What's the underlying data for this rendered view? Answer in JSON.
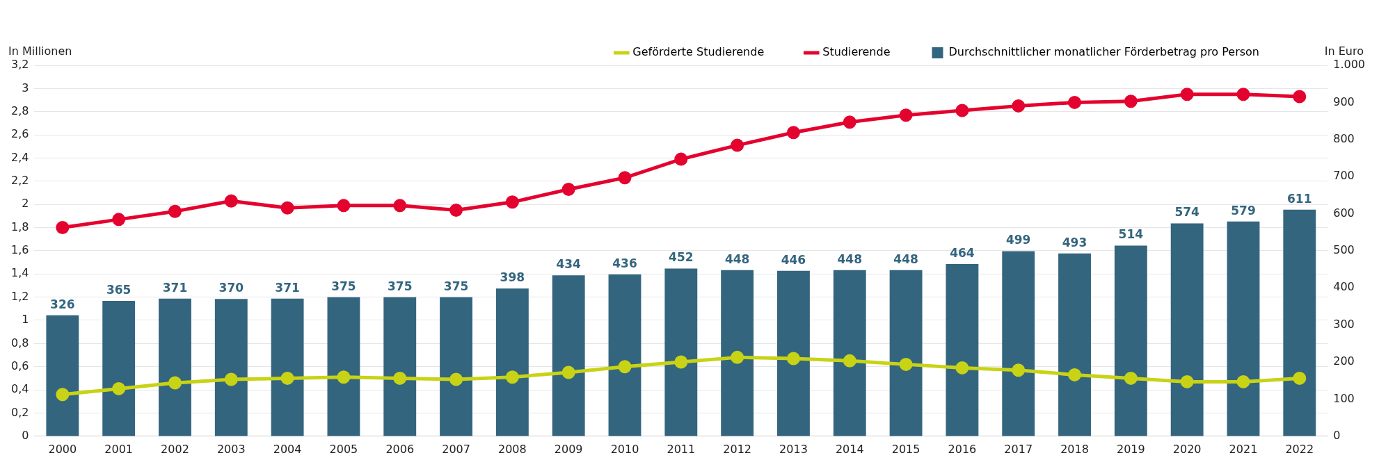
{
  "chart_data": {
    "type": "bar",
    "ylabel": "In Millionen",
    "y2label": "In Euro",
    "categories": [
      "2000",
      "2001",
      "2002",
      "2003",
      "2004",
      "2005",
      "2006",
      "2007",
      "2008",
      "2009",
      "2010",
      "2011",
      "2012",
      "2013",
      "2014",
      "2015",
      "2016",
      "2017",
      "2018",
      "2019",
      "2020",
      "2021",
      "2022"
    ],
    "series": [
      {
        "name": "Geförderte Studierende",
        "type": "line",
        "axis": "y",
        "color": "#c8d316",
        "values": [
          0.36,
          0.41,
          0.46,
          0.49,
          0.5,
          0.51,
          0.5,
          0.49,
          0.51,
          0.55,
          0.6,
          0.64,
          0.68,
          0.67,
          0.65,
          0.62,
          0.59,
          0.57,
          0.53,
          0.5,
          0.47,
          0.47,
          0.5
        ]
      },
      {
        "name": "Studierende",
        "type": "line",
        "axis": "y",
        "color": "#e4032e",
        "values": [
          1.8,
          1.87,
          1.94,
          2.03,
          1.97,
          1.99,
          1.99,
          1.95,
          2.02,
          2.13,
          2.23,
          2.39,
          2.51,
          2.62,
          2.71,
          2.77,
          2.81,
          2.85,
          2.88,
          2.89,
          2.95,
          2.95,
          2.93
        ]
      },
      {
        "name": "Durchschnittlicher monatlicher Förderbetrag pro Person",
        "axis": "y2",
        "color": "#34657f",
        "values": [
          326,
          365,
          371,
          370,
          371,
          375,
          375,
          375,
          398,
          434,
          436,
          452,
          448,
          446,
          448,
          448,
          464,
          499,
          493,
          514,
          574,
          579,
          611
        ],
        "value_labels": [
          "326",
          "365",
          "371",
          "370",
          "371",
          "375",
          "375",
          "375",
          "398",
          "434",
          "436",
          "452",
          "448",
          "446",
          "448",
          "448",
          "464",
          "499",
          "493",
          "514",
          "574",
          "579",
          "611"
        ]
      }
    ],
    "ylim": [
      0,
      3.2
    ],
    "yticks": [
      0,
      {
        "value": 0.2,
        "label": "0,2"
      },
      {
        "value": 0.4,
        "label": "0,4"
      },
      {
        "value": 0.6,
        "label": "0,6"
      },
      {
        "value": 0.8,
        "label": "0,8"
      },
      1,
      {
        "value": 1.2,
        "label": "1,2"
      },
      {
        "value": 1.4,
        "label": "1,4"
      },
      {
        "value": 1.6,
        "label": "1,6"
      },
      {
        "value": 1.8,
        "label": "1,8"
      },
      2,
      {
        "value": 2.2,
        "label": "2,2"
      },
      {
        "value": 2.4,
        "label": "2,4"
      },
      {
        "value": 2.6,
        "label": "2,6"
      },
      {
        "value": 2.8,
        "label": "2,8"
      },
      3,
      {
        "value": 3.2,
        "label": "3,2"
      }
    ],
    "y2lim": [
      0,
      1000
    ],
    "y2ticks": [
      0,
      100,
      200,
      300,
      400,
      500,
      600,
      700,
      800,
      900,
      {
        "value": 1000,
        "label": "1.000"
      }
    ],
    "grid": "y",
    "legend": "top right",
    "marker": "circle",
    "line_style": "solid"
  }
}
